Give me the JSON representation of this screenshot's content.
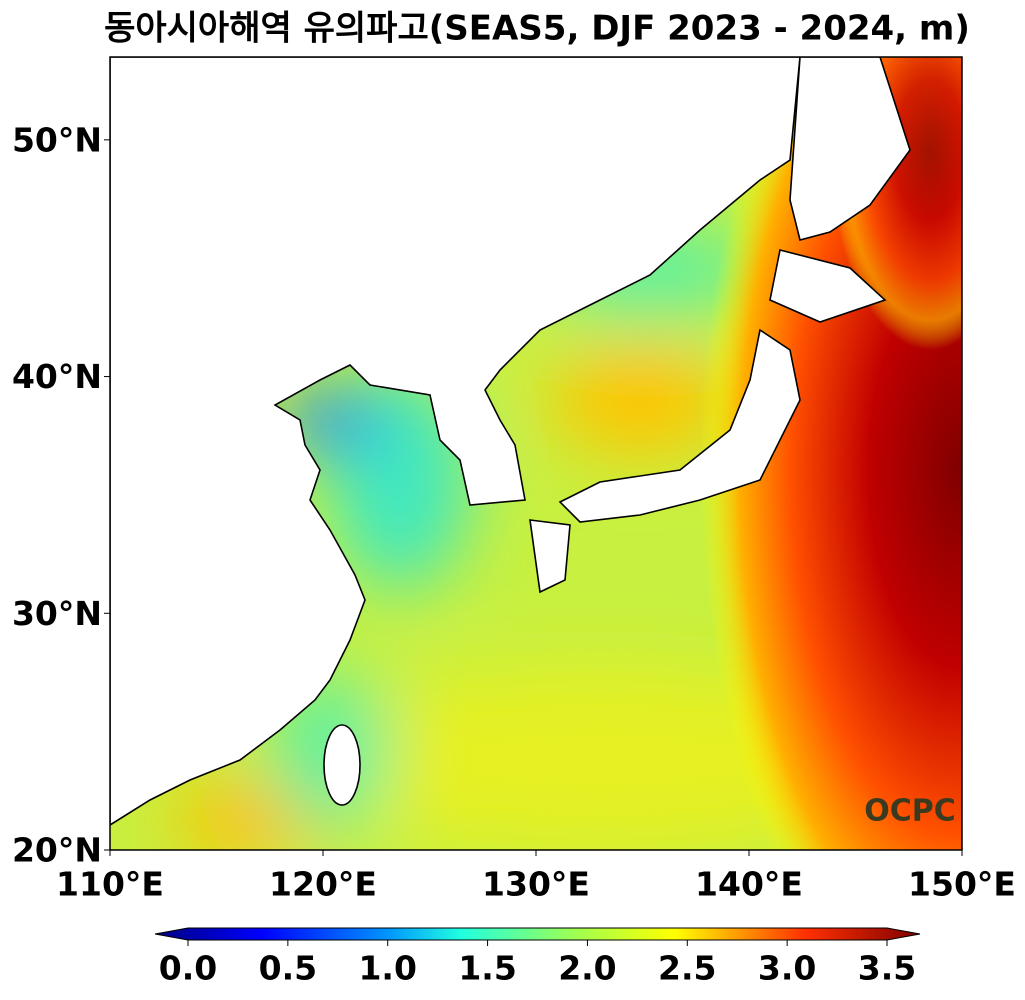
{
  "title": "동아시아해역 유의파고(SEAS5, DJF 2023 - 2024, m)",
  "map": {
    "xlim": [
      110,
      150
    ],
    "ylim": [
      20,
      53.5
    ],
    "xticks": [
      {
        "value": 110,
        "label": "110°E"
      },
      {
        "value": 120,
        "label": "120°E"
      },
      {
        "value": 130,
        "label": "130°E"
      },
      {
        "value": 140,
        "label": "140°E"
      },
      {
        "value": 150,
        "label": "150°E"
      }
    ],
    "yticks": [
      {
        "value": 20,
        "label": "20°N"
      },
      {
        "value": 30,
        "label": "30°N"
      },
      {
        "value": 40,
        "label": "40°N"
      },
      {
        "value": 50,
        "label": "50°N"
      }
    ]
  },
  "colorbar": {
    "lim": [
      0,
      3.5
    ],
    "ticks": [
      {
        "value": 0,
        "label": "0.0"
      },
      0.5,
      {
        "value": 1,
        "label": "1.0"
      },
      1.5,
      {
        "value": 2,
        "label": "2.0"
      },
      2.5,
      {
        "value": 3,
        "label": "3.0"
      },
      3.5
    ]
  },
  "logo": "OCPC"
}
